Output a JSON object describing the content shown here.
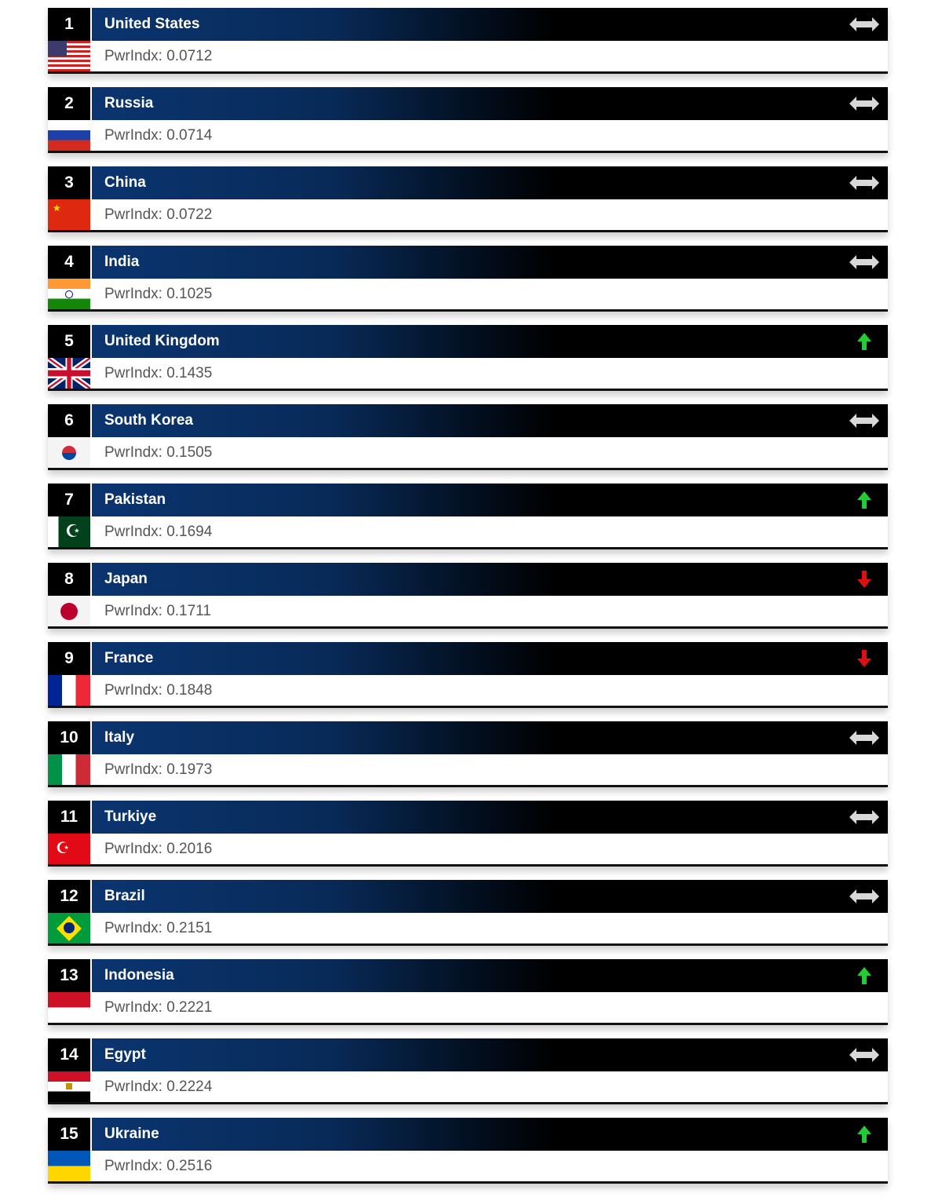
{
  "colors": {
    "up": "#22cc33",
    "down": "#e01010",
    "same": "#d8d8d8",
    "header_blue": "#0b3570"
  },
  "rows": [
    {
      "rank": "1",
      "country": "United States",
      "pwr": "PwrIndx: 0.0712",
      "trend": "same",
      "flag": "us"
    },
    {
      "rank": "2",
      "country": "Russia",
      "pwr": "PwrIndx: 0.0714",
      "trend": "same",
      "flag": "ru"
    },
    {
      "rank": "3",
      "country": "China",
      "pwr": "PwrIndx: 0.0722",
      "trend": "same",
      "flag": "cn"
    },
    {
      "rank": "4",
      "country": "India",
      "pwr": "PwrIndx: 0.1025",
      "trend": "same",
      "flag": "in"
    },
    {
      "rank": "5",
      "country": "United Kingdom",
      "pwr": "PwrIndx: 0.1435",
      "trend": "up",
      "flag": "gb"
    },
    {
      "rank": "6",
      "country": "South Korea",
      "pwr": "PwrIndx: 0.1505",
      "trend": "same",
      "flag": "kr"
    },
    {
      "rank": "7",
      "country": "Pakistan",
      "pwr": "PwrIndx: 0.1694",
      "trend": "up",
      "flag": "pk"
    },
    {
      "rank": "8",
      "country": "Japan",
      "pwr": "PwrIndx: 0.1711",
      "trend": "down",
      "flag": "jp"
    },
    {
      "rank": "9",
      "country": "France",
      "pwr": "PwrIndx: 0.1848",
      "trend": "down",
      "flag": "fr"
    },
    {
      "rank": "10",
      "country": "Italy",
      "pwr": "PwrIndx: 0.1973",
      "trend": "same",
      "flag": "it"
    },
    {
      "rank": "11",
      "country": "Turkiye",
      "pwr": "PwrIndx: 0.2016",
      "trend": "same",
      "flag": "tr"
    },
    {
      "rank": "12",
      "country": "Brazil",
      "pwr": "PwrIndx: 0.2151",
      "trend": "same",
      "flag": "br"
    },
    {
      "rank": "13",
      "country": "Indonesia",
      "pwr": "PwrIndx: 0.2221",
      "trend": "up",
      "flag": "id"
    },
    {
      "rank": "14",
      "country": "Egypt",
      "pwr": "PwrIndx: 0.2224",
      "trend": "same",
      "flag": "eg"
    },
    {
      "rank": "15",
      "country": "Ukraine",
      "pwr": "PwrIndx: 0.2516",
      "trend": "up",
      "flag": "ua"
    }
  ]
}
